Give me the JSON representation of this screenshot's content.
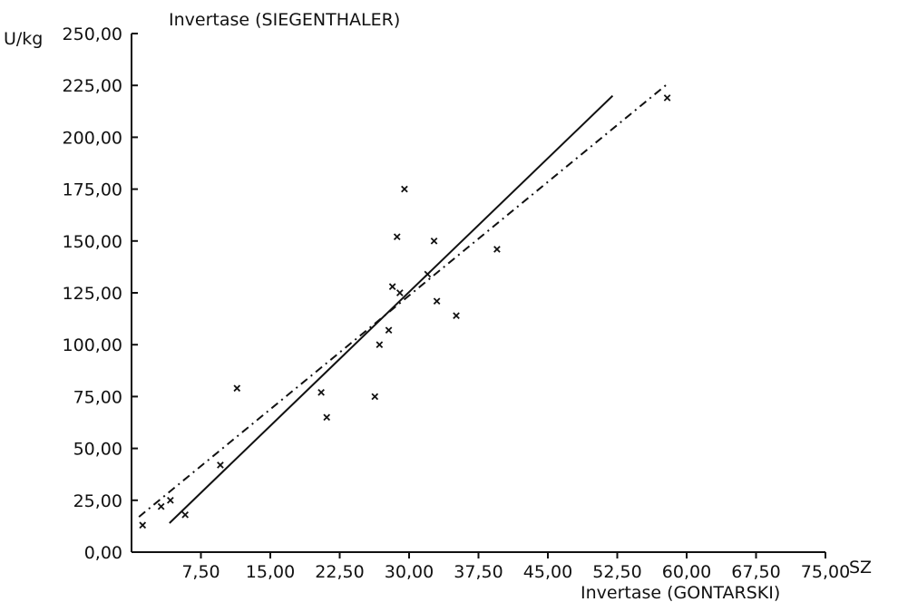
{
  "chart_data": {
    "type": "scatter",
    "title": "Invertase (SIEGENTHALER)",
    "xlabel": "Invertase (GONTARSKI)",
    "x_unit": "SZ",
    "ylabel": "U/kg",
    "xlim": [
      0,
      75
    ],
    "ylim": [
      0,
      250
    ],
    "x_ticks": [
      7.5,
      15,
      22.5,
      30,
      37.5,
      45,
      52.5,
      60,
      67.5,
      75
    ],
    "x_tick_labels": [
      "7,50",
      "15,00",
      "22,50",
      "30,00",
      "37,50",
      "45,00",
      "52,50",
      "60,00",
      "67,50",
      "75,00"
    ],
    "y_ticks": [
      0,
      25,
      50,
      75,
      100,
      125,
      150,
      175,
      200,
      225,
      250
    ],
    "y_tick_labels": [
      "0,00",
      "25,00",
      "50,00",
      "75,00",
      "100,00",
      "125,00",
      "150,00",
      "175,00",
      "200,00",
      "225,00",
      "250,00"
    ],
    "grid": false,
    "series": [
      {
        "marker": "x",
        "points": [
          [
            1.2,
            13
          ],
          [
            3.2,
            22
          ],
          [
            4.2,
            25
          ],
          [
            5.8,
            18
          ],
          [
            9.6,
            42
          ],
          [
            11.4,
            79
          ],
          [
            20.5,
            77
          ],
          [
            21.1,
            65
          ],
          [
            26.3,
            75
          ],
          [
            26.8,
            100
          ],
          [
            27.8,
            107
          ],
          [
            28.2,
            128
          ],
          [
            28.7,
            152
          ],
          [
            29.0,
            125
          ],
          [
            29.5,
            175
          ],
          [
            32.0,
            134
          ],
          [
            32.7,
            150
          ],
          [
            33.0,
            121
          ],
          [
            35.1,
            114
          ],
          [
            39.5,
            146
          ],
          [
            57.9,
            219
          ]
        ]
      },
      {
        "style": "solid",
        "line": [
          [
            4.1,
            14
          ],
          [
            52.0,
            220
          ]
        ]
      },
      {
        "style": "dash-dot",
        "line": [
          [
            0.8,
            17
          ],
          [
            58.0,
            226
          ]
        ]
      }
    ]
  }
}
